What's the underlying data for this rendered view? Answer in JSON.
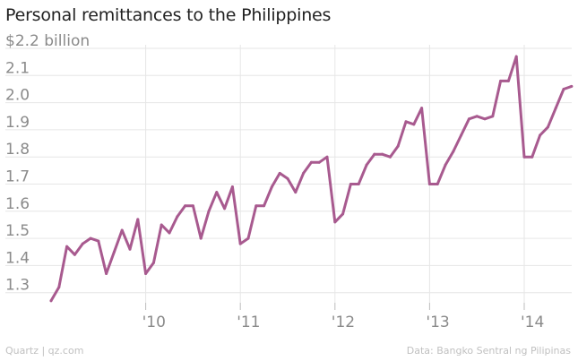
{
  "title": "Personal remittances to the Philippines",
  "footer": {
    "source_left": "Quartz | qz.com",
    "source_right": "Data: Bangko Sentral ng Pilipinas"
  },
  "colors": {
    "line": "#a85a8f",
    "grid": "#e6e6e6",
    "text": "#8a8a8a"
  },
  "chart_data": {
    "type": "line",
    "title": "Personal remittances to the Philippines",
    "xlabel": "",
    "ylabel": "",
    "ylim": [
      1.25,
      2.2
    ],
    "grid": true,
    "y_ticks": [
      {
        "value": 2.2,
        "label": "$2.2 billion"
      },
      {
        "value": 2.1,
        "label": "2.1"
      },
      {
        "value": 2.0,
        "label": "2.0"
      },
      {
        "value": 1.9,
        "label": "1.9"
      },
      {
        "value": 1.8,
        "label": "1.8"
      },
      {
        "value": 1.7,
        "label": "1.7"
      },
      {
        "value": 1.6,
        "label": "1.6"
      },
      {
        "value": 1.5,
        "label": "1.5"
      },
      {
        "value": 1.4,
        "label": "1.4"
      },
      {
        "value": 1.3,
        "label": "1.3"
      }
    ],
    "x_ticks": [
      {
        "value": "2010-01",
        "label": "'10"
      },
      {
        "value": "2011-01",
        "label": "'11"
      },
      {
        "value": "2012-01",
        "label": "'12"
      },
      {
        "value": "2013-01",
        "label": "'13"
      },
      {
        "value": "2014-01",
        "label": "'14"
      }
    ],
    "series": [
      {
        "x": [
          "2009-01",
          "2009-02",
          "2009-03",
          "2009-04",
          "2009-05",
          "2009-06",
          "2009-07",
          "2009-08",
          "2009-09",
          "2009-10",
          "2009-11",
          "2009-12",
          "2010-01",
          "2010-02",
          "2010-03",
          "2010-04",
          "2010-05",
          "2010-06",
          "2010-07",
          "2010-08",
          "2010-09",
          "2010-10",
          "2010-11",
          "2010-12",
          "2011-01",
          "2011-02",
          "2011-03",
          "2011-04",
          "2011-05",
          "2011-06",
          "2011-07",
          "2011-08",
          "2011-09",
          "2011-10",
          "2011-11",
          "2011-12",
          "2012-01",
          "2012-02",
          "2012-03",
          "2012-04",
          "2012-05",
          "2012-06",
          "2012-07",
          "2012-08",
          "2012-09",
          "2012-10",
          "2012-11",
          "2012-12",
          "2013-01",
          "2013-02",
          "2013-03",
          "2013-04",
          "2013-05",
          "2013-06",
          "2013-07",
          "2013-08",
          "2013-09",
          "2013-10",
          "2013-11",
          "2013-12",
          "2014-01",
          "2014-02",
          "2014-03",
          "2014-04",
          "2014-05",
          "2014-06",
          "2014-07"
        ],
        "values": [
          1.27,
          1.32,
          1.47,
          1.44,
          1.48,
          1.5,
          1.49,
          1.37,
          1.45,
          1.53,
          1.46,
          1.57,
          1.37,
          1.41,
          1.55,
          1.52,
          1.58,
          1.62,
          1.62,
          1.5,
          1.6,
          1.67,
          1.61,
          1.69,
          1.48,
          1.5,
          1.62,
          1.62,
          1.69,
          1.74,
          1.72,
          1.67,
          1.74,
          1.78,
          1.78,
          1.8,
          1.56,
          1.59,
          1.7,
          1.7,
          1.77,
          1.81,
          1.81,
          1.8,
          1.84,
          1.93,
          1.92,
          1.98,
          1.7,
          1.7,
          1.77,
          1.82,
          1.88,
          1.94,
          1.95,
          1.94,
          1.95,
          2.08,
          2.08,
          2.17,
          1.8,
          1.8,
          1.88,
          1.91,
          1.98,
          2.05,
          2.06
        ]
      }
    ]
  }
}
